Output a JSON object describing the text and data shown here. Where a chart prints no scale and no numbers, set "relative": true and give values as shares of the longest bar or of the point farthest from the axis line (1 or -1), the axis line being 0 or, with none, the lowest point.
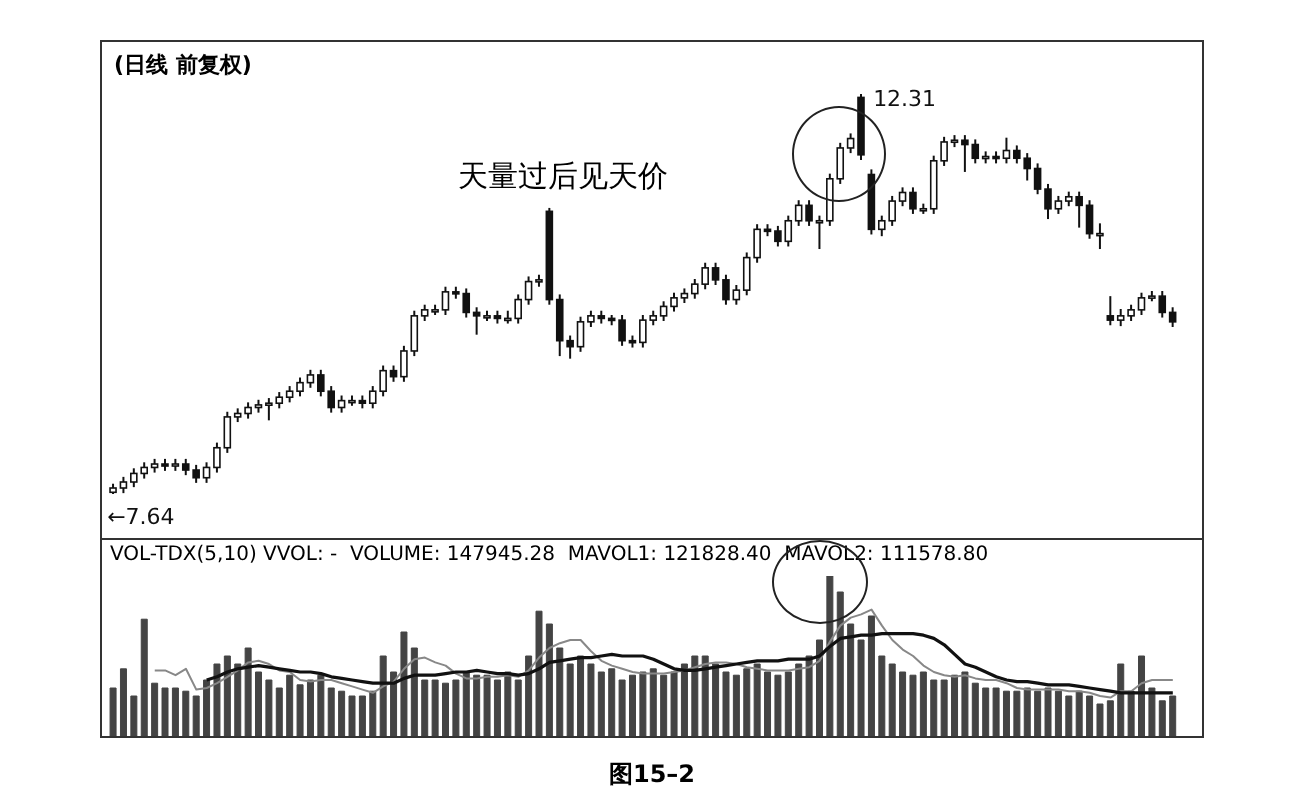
{
  "chart_data": [
    {
      "type": "candlestick",
      "title": "(日线 前复权)",
      "categories": [
        null,
        null,
        null,
        null,
        null,
        null,
        null,
        null,
        null,
        null,
        null,
        null,
        null,
        null,
        null,
        null,
        null,
        null,
        null,
        null,
        null,
        null,
        null,
        null,
        null,
        null,
        null,
        null,
        null,
        null,
        null,
        null,
        null,
        null,
        null,
        null,
        null,
        null,
        null,
        null,
        null,
        null,
        null,
        null,
        null,
        null,
        null,
        null,
        null,
        null,
        null,
        null,
        null,
        null,
        null,
        null,
        null,
        null,
        null,
        null,
        null,
        null,
        null,
        null,
        null,
        null,
        null,
        null,
        null,
        null,
        null,
        null,
        null,
        null,
        null,
        null,
        null,
        null,
        null,
        null,
        null,
        null,
        null,
        null,
        null,
        null,
        null,
        null,
        null,
        null,
        null,
        null,
        null,
        null,
        null,
        null,
        null,
        null,
        null,
        null,
        null,
        null,
        null
      ],
      "ohlc": [
        [
          7.66,
          7.76,
          7.64,
          7.71
        ],
        [
          7.71,
          7.84,
          7.65,
          7.78
        ],
        [
          7.78,
          7.94,
          7.72,
          7.88
        ],
        [
          7.88,
          8.01,
          7.82,
          7.95
        ],
        [
          7.95,
          8.05,
          7.89,
          7.99
        ],
        [
          7.99,
          8.05,
          7.91,
          7.97
        ],
        [
          7.97,
          8.05,
          7.91,
          7.99
        ],
        [
          7.99,
          8.05,
          7.86,
          7.92
        ],
        [
          7.92,
          7.98,
          7.77,
          7.83
        ],
        [
          7.83,
          8.01,
          7.77,
          7.95
        ],
        [
          7.95,
          8.24,
          7.89,
          8.18
        ],
        [
          8.18,
          8.6,
          8.12,
          8.54
        ],
        [
          8.54,
          8.64,
          8.48,
          8.58
        ],
        [
          8.58,
          8.71,
          8.52,
          8.65
        ],
        [
          8.65,
          8.74,
          8.59,
          8.68
        ],
        [
          8.68,
          8.76,
          8.5,
          8.7
        ],
        [
          8.7,
          8.83,
          8.64,
          8.77
        ],
        [
          8.77,
          8.9,
          8.71,
          8.84
        ],
        [
          8.84,
          9.0,
          8.78,
          8.94
        ],
        [
          8.94,
          9.09,
          8.88,
          9.03
        ],
        [
          9.03,
          9.09,
          8.78,
          8.84
        ],
        [
          8.84,
          8.9,
          8.59,
          8.65
        ],
        [
          8.65,
          8.79,
          8.59,
          8.73
        ],
        [
          8.73,
          8.79,
          8.67,
          8.73
        ],
        [
          8.73,
          8.79,
          8.64,
          8.7
        ],
        [
          8.7,
          8.9,
          8.64,
          8.84
        ],
        [
          8.84,
          9.14,
          8.78,
          9.08
        ],
        [
          9.08,
          9.14,
          8.95,
          9.01
        ],
        [
          9.01,
          9.37,
          8.95,
          9.31
        ],
        [
          9.31,
          9.78,
          9.25,
          9.72
        ],
        [
          9.72,
          9.85,
          9.66,
          9.79
        ],
        [
          9.79,
          9.85,
          9.73,
          9.79
        ],
        [
          9.79,
          10.06,
          9.73,
          10.0
        ],
        [
          10.0,
          10.06,
          9.92,
          9.98
        ],
        [
          9.98,
          10.04,
          9.7,
          9.76
        ],
        [
          9.76,
          9.82,
          9.5,
          9.72
        ],
        [
          9.72,
          9.78,
          9.66,
          9.72
        ],
        [
          9.72,
          9.78,
          9.63,
          9.69
        ],
        [
          9.69,
          9.78,
          9.63,
          9.69
        ],
        [
          9.69,
          9.97,
          9.63,
          9.91
        ],
        [
          9.91,
          10.18,
          9.85,
          10.12
        ],
        [
          10.12,
          10.2,
          10.06,
          10.14
        ],
        [
          10.94,
          10.98,
          9.85,
          9.91
        ],
        [
          9.91,
          9.97,
          9.25,
          9.43
        ],
        [
          9.43,
          9.49,
          9.22,
          9.36
        ],
        [
          9.36,
          9.71,
          9.3,
          9.65
        ],
        [
          9.65,
          9.78,
          9.59,
          9.72
        ],
        [
          9.72,
          9.78,
          9.63,
          9.69
        ],
        [
          9.69,
          9.73,
          9.61,
          9.67
        ],
        [
          9.67,
          9.73,
          9.37,
          9.43
        ],
        [
          9.43,
          9.49,
          9.35,
          9.41
        ],
        [
          9.41,
          9.73,
          9.35,
          9.67
        ],
        [
          9.67,
          9.78,
          9.61,
          9.72
        ],
        [
          9.72,
          9.89,
          9.66,
          9.83
        ],
        [
          9.83,
          9.99,
          9.77,
          9.93
        ],
        [
          9.93,
          10.04,
          9.87,
          9.98
        ],
        [
          9.98,
          10.15,
          9.92,
          10.09
        ],
        [
          10.09,
          10.34,
          10.03,
          10.28
        ],
        [
          10.28,
          10.34,
          10.08,
          10.14
        ],
        [
          10.14,
          10.2,
          9.85,
          9.91
        ],
        [
          9.91,
          10.08,
          9.85,
          10.02
        ],
        [
          10.02,
          10.46,
          9.96,
          10.4
        ],
        [
          10.4,
          10.79,
          10.34,
          10.73
        ],
        [
          10.73,
          10.79,
          10.65,
          10.71
        ],
        [
          10.71,
          10.77,
          10.53,
          10.59
        ],
        [
          10.59,
          10.89,
          10.53,
          10.83
        ],
        [
          10.83,
          11.07,
          10.77,
          11.01
        ],
        [
          11.01,
          11.07,
          10.77,
          10.83
        ],
        [
          10.83,
          10.89,
          10.5,
          10.83
        ],
        [
          10.83,
          11.38,
          10.77,
          11.32
        ],
        [
          11.32,
          11.74,
          11.26,
          11.68
        ],
        [
          11.68,
          11.85,
          11.62,
          11.79
        ],
        [
          12.27,
          12.31,
          11.54,
          11.6
        ],
        [
          11.37,
          11.43,
          10.67,
          10.73
        ],
        [
          10.73,
          10.89,
          10.65,
          10.83
        ],
        [
          10.83,
          11.12,
          10.77,
          11.06
        ],
        [
          11.06,
          11.22,
          11.0,
          11.16
        ],
        [
          11.16,
          11.22,
          10.91,
          10.97
        ],
        [
          10.97,
          11.03,
          10.91,
          10.97
        ],
        [
          10.97,
          11.59,
          10.91,
          11.53
        ],
        [
          11.53,
          11.81,
          11.47,
          11.75
        ],
        [
          11.75,
          11.83,
          11.69,
          11.77
        ],
        [
          11.77,
          11.83,
          11.4,
          11.72
        ],
        [
          11.72,
          11.78,
          11.5,
          11.56
        ],
        [
          11.56,
          11.64,
          11.5,
          11.58
        ],
        [
          11.58,
          11.64,
          11.5,
          11.56
        ],
        [
          11.56,
          11.8,
          11.5,
          11.65
        ],
        [
          11.65,
          11.71,
          11.5,
          11.56
        ],
        [
          11.56,
          11.62,
          11.3,
          11.44
        ],
        [
          11.44,
          11.5,
          11.14,
          11.2
        ],
        [
          11.2,
          11.26,
          10.85,
          10.97
        ],
        [
          10.97,
          11.12,
          10.91,
          11.06
        ],
        [
          11.06,
          11.17,
          11.0,
          11.11
        ],
        [
          11.11,
          11.17,
          10.75,
          11.01
        ],
        [
          11.01,
          11.07,
          10.62,
          10.68
        ],
        [
          10.68,
          10.8,
          10.5,
          10.68
        ],
        [
          9.72,
          9.95,
          9.61,
          9.67
        ],
        [
          9.67,
          9.8,
          9.6,
          9.72
        ],
        [
          9.72,
          9.85,
          9.66,
          9.79
        ],
        [
          9.79,
          9.99,
          9.73,
          9.93
        ],
        [
          9.93,
          10.01,
          9.89,
          9.95
        ],
        [
          9.95,
          10.01,
          9.7,
          9.76
        ],
        [
          9.76,
          9.82,
          9.59,
          9.65
        ]
      ],
      "annotations": [
        "天量过后见天价",
        "12.31",
        "←7.64"
      ]
    },
    {
      "type": "bar",
      "relative": true,
      "title": "VOL-TDX(5,10) VVOL: -  VOLUME: 147945.28  MAVOL1: 121828.40  MAVOL2: 111578.80",
      "categories": [
        null,
        null,
        null,
        null,
        null,
        null,
        null,
        null,
        null,
        null,
        null,
        null,
        null,
        null,
        null,
        null,
        null,
        null,
        null,
        null,
        null,
        null,
        null,
        null,
        null,
        null,
        null,
        null,
        null,
        null,
        null,
        null,
        null,
        null,
        null,
        null,
        null,
        null,
        null,
        null,
        null,
        null,
        null,
        null,
        null,
        null,
        null,
        null,
        null,
        null,
        null,
        null,
        null,
        null,
        null,
        null,
        null,
        null,
        null,
        null,
        null,
        null,
        null,
        null,
        null,
        null,
        null,
        null,
        null,
        null,
        null,
        null,
        null,
        null,
        null,
        null,
        null,
        null,
        null,
        null,
        null,
        null,
        null,
        null,
        null,
        null,
        null,
        null,
        null,
        null,
        null,
        null,
        null,
        null,
        null,
        null,
        null,
        null,
        null,
        null,
        null,
        null,
        null
      ],
      "series": [
        {
          "color": "#444444",
          "values": [
            0.3,
            0.42,
            0.25,
            0.73,
            0.33,
            0.3,
            0.3,
            0.28,
            0.25,
            0.35,
            0.45,
            0.5,
            0.45,
            0.55,
            0.4,
            0.35,
            0.3,
            0.38,
            0.32,
            0.35,
            0.38,
            0.3,
            0.28,
            0.25,
            0.25,
            0.28,
            0.5,
            0.4,
            0.65,
            0.55,
            0.35,
            0.35,
            0.33,
            0.35,
            0.4,
            0.38,
            0.38,
            0.35,
            0.4,
            0.35,
            0.5,
            0.78,
            0.7,
            0.55,
            0.45,
            0.5,
            0.45,
            0.4,
            0.42,
            0.35,
            0.38,
            0.4,
            0.42,
            0.38,
            0.4,
            0.45,
            0.5,
            0.5,
            0.45,
            0.4,
            0.38,
            0.42,
            0.45,
            0.4,
            0.38,
            0.4,
            0.45,
            0.5,
            0.6,
            1.0,
            0.9,
            0.7,
            0.6,
            0.75,
            0.5,
            0.45,
            0.4,
            0.38,
            0.4,
            0.35,
            0.35,
            0.38,
            0.4,
            0.33,
            0.3,
            0.3,
            0.28,
            0.28,
            0.3,
            0.28,
            0.3,
            0.28,
            0.25,
            0.28,
            0.25,
            0.2,
            0.22,
            0.45,
            0.28,
            0.5,
            0.3,
            0.22,
            0.25
          ]
        },
        {
          "type": "line",
          "color": "#888888",
          "values": [
            null,
            null,
            null,
            null,
            0.41,
            0.41,
            0.38,
            0.42,
            0.29,
            0.3,
            0.33,
            0.37,
            0.41,
            0.46,
            0.47,
            0.45,
            0.41,
            0.4,
            0.35,
            0.34,
            0.35,
            0.35,
            0.33,
            0.31,
            0.29,
            0.27,
            0.31,
            0.34,
            0.42,
            0.48,
            0.49,
            0.46,
            0.44,
            0.39,
            0.36,
            0.36,
            0.37,
            0.37,
            0.38,
            0.37,
            0.41,
            0.49,
            0.55,
            0.58,
            0.6,
            0.6,
            0.53,
            0.47,
            0.44,
            0.42,
            0.4,
            0.39,
            0.39,
            0.39,
            0.4,
            0.41,
            0.43,
            0.45,
            0.46,
            0.46,
            0.45,
            0.43,
            0.42,
            0.41,
            0.41,
            0.41,
            0.42,
            0.43,
            0.47,
            0.59,
            0.69,
            0.74,
            0.76,
            0.79,
            0.69,
            0.6,
            0.54,
            0.5,
            0.44,
            0.4,
            0.38,
            0.37,
            0.38,
            0.36,
            0.35,
            0.35,
            0.33,
            0.3,
            0.29,
            0.29,
            0.29,
            0.29,
            0.28,
            0.28,
            0.27,
            0.25,
            0.24,
            0.28,
            0.28,
            0.33,
            0.35,
            0.35,
            0.35
          ]
        },
        {
          "type": "line",
          "color": "#111111",
          "values": [
            null,
            null,
            null,
            null,
            null,
            null,
            null,
            null,
            null,
            0.35,
            0.37,
            0.4,
            0.42,
            0.43,
            0.44,
            0.43,
            0.42,
            0.41,
            0.4,
            0.4,
            0.39,
            0.37,
            0.36,
            0.35,
            0.34,
            0.33,
            0.33,
            0.33,
            0.36,
            0.38,
            0.38,
            0.38,
            0.39,
            0.4,
            0.4,
            0.41,
            0.4,
            0.39,
            0.39,
            0.38,
            0.39,
            0.42,
            0.46,
            0.47,
            0.48,
            0.49,
            0.49,
            0.5,
            0.51,
            0.5,
            0.5,
            0.5,
            0.48,
            0.45,
            0.42,
            0.41,
            0.41,
            0.42,
            0.43,
            0.44,
            0.45,
            0.46,
            0.47,
            0.47,
            0.47,
            0.48,
            0.48,
            0.48,
            0.5,
            0.56,
            0.61,
            0.62,
            0.63,
            0.63,
            0.64,
            0.64,
            0.64,
            0.64,
            0.63,
            0.61,
            0.57,
            0.51,
            0.45,
            0.43,
            0.4,
            0.37,
            0.35,
            0.34,
            0.34,
            0.33,
            0.32,
            0.32,
            0.32,
            0.31,
            0.3,
            0.29,
            0.28,
            0.27,
            0.27,
            0.27,
            0.27,
            0.27,
            0.27
          ]
        }
      ],
      "annotations": [
        "图15–2"
      ]
    }
  ]
}
